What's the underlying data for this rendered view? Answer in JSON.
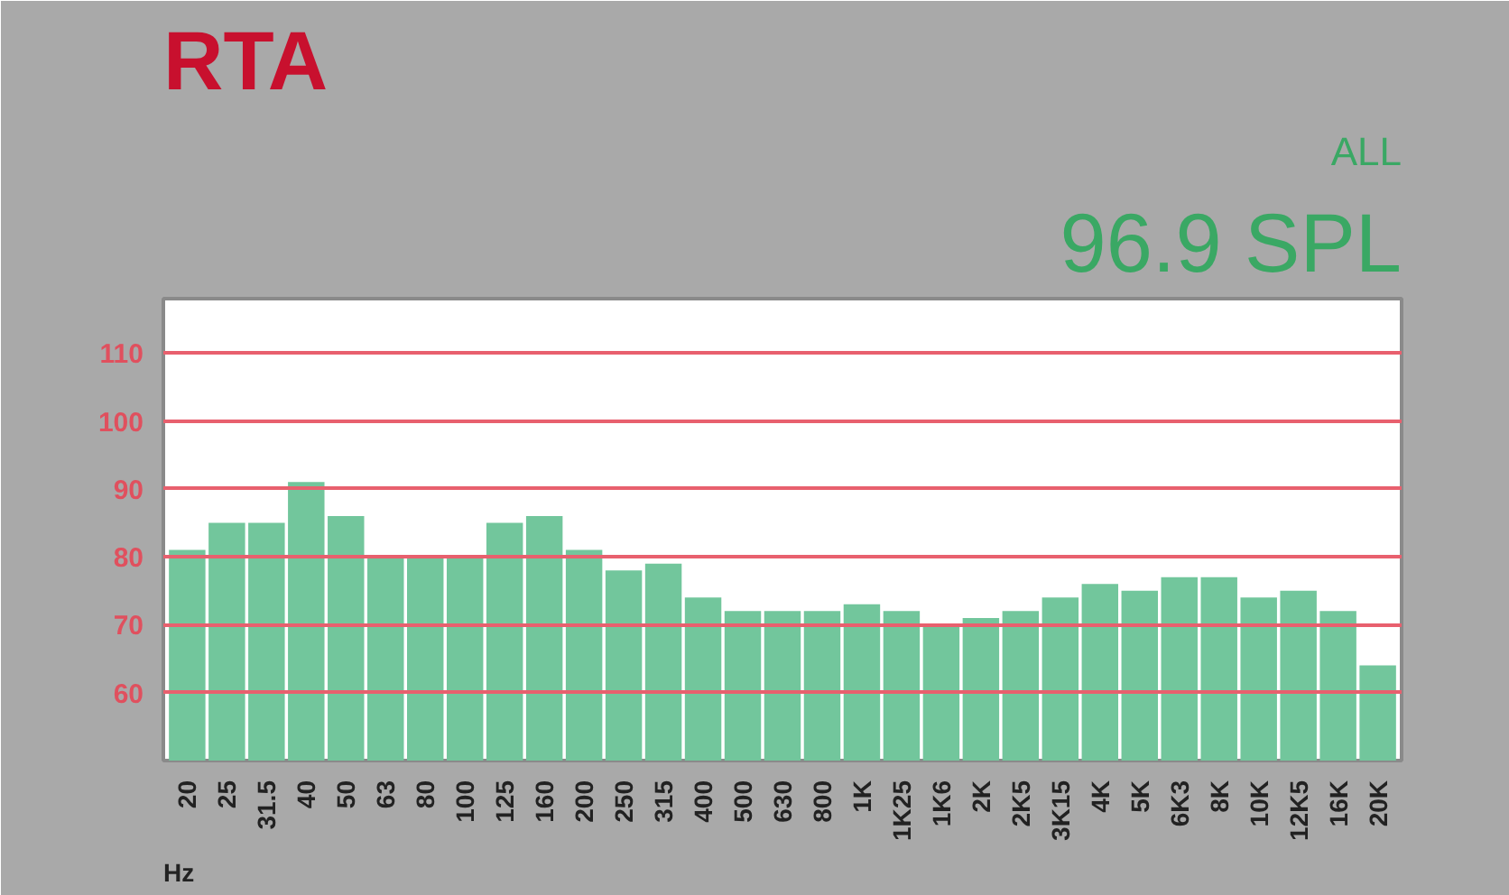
{
  "chart_data": {
    "type": "bar",
    "title": "RTA",
    "xlabel": "Hz",
    "annotations": [
      "ALL",
      "96.9 SPL"
    ],
    "categories": [
      "20",
      "25",
      "31.5",
      "40",
      "50",
      "63",
      "80",
      "100",
      "125",
      "160",
      "200",
      "250",
      "315",
      "400",
      "500",
      "630",
      "800",
      "1K",
      "1K25",
      "1K6",
      "2K",
      "2K5",
      "3K15",
      "4K",
      "5K",
      "6K3",
      "8K",
      "10K",
      "12K5",
      "16K",
      "20K"
    ],
    "values": [
      81,
      85,
      85,
      91,
      86,
      80,
      80,
      80,
      85,
      86,
      81,
      78,
      79,
      74,
      72,
      72,
      72,
      73,
      72,
      70,
      71,
      72,
      74,
      76,
      75,
      77,
      77,
      74,
      75,
      72,
      64
    ],
    "color": "#72c69c",
    "ylim": [
      50,
      118
    ],
    "yticks": [
      60,
      70,
      80,
      90,
      100,
      110
    ],
    "grid": "y"
  }
}
